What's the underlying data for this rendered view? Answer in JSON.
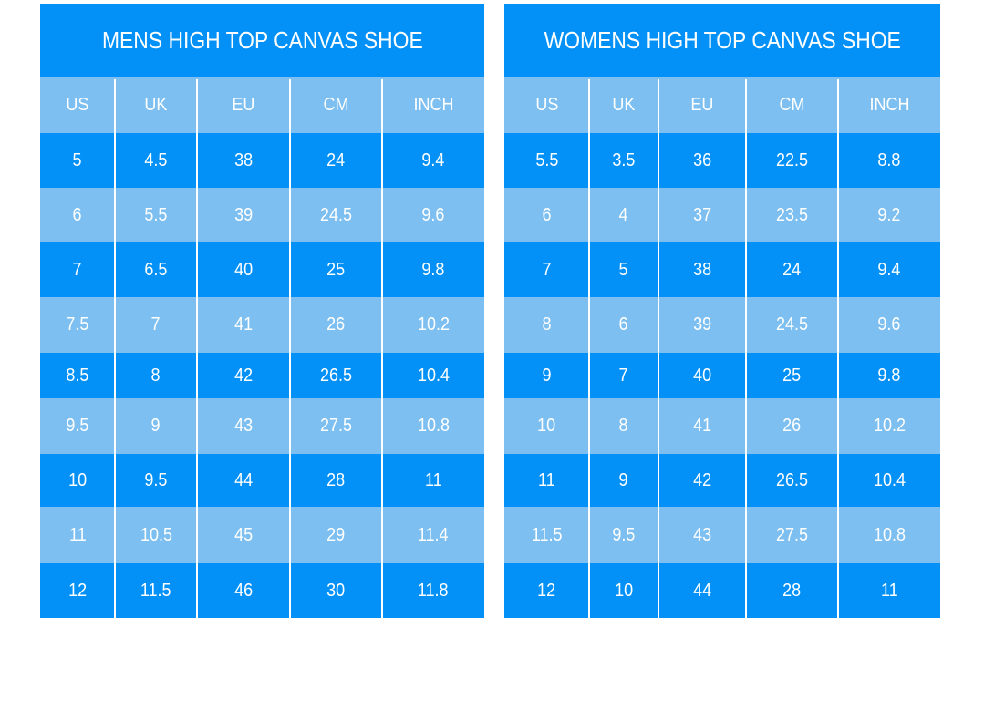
{
  "tables": [
    {
      "title": "MENS HIGH TOP CANVAS SHOE",
      "header": [
        "US",
        "UK",
        "EU",
        "CM",
        "INCH"
      ],
      "rows": [
        [
          "5",
          "4.5",
          "38",
          "24",
          "9.4"
        ],
        [
          "6",
          "5.5",
          "39",
          "24.5",
          "9.6"
        ],
        [
          "7",
          "6.5",
          "40",
          "25",
          "9.8"
        ],
        [
          "7.5",
          "7",
          "41",
          "26",
          "10.2"
        ],
        [
          "8.5",
          "8",
          "42",
          "26.5",
          "10.4"
        ],
        [
          "9.5",
          "9",
          "43",
          "27.5",
          "10.8"
        ],
        [
          "10",
          "9.5",
          "44",
          "28",
          "11"
        ],
        [
          "11",
          "10.5",
          "45",
          "29",
          "11.4"
        ],
        [
          "12",
          "11.5",
          "46",
          "30",
          "11.8"
        ]
      ]
    },
    {
      "title": "WOMENS HIGH TOP CANVAS SHOE",
      "header": [
        "US",
        "UK",
        "EU",
        "CM",
        "INCH"
      ],
      "rows": [
        [
          "5.5",
          "3.5",
          "36",
          "22.5",
          "8.8"
        ],
        [
          "6",
          "4",
          "37",
          "23.5",
          "9.2"
        ],
        [
          "7",
          "5",
          "38",
          "24",
          "9.4"
        ],
        [
          "8",
          "6",
          "39",
          "24.5",
          "9.6"
        ],
        [
          "9",
          "7",
          "40",
          "25",
          "9.8"
        ],
        [
          "10",
          "8",
          "41",
          "26",
          "10.2"
        ],
        [
          "11",
          "9",
          "42",
          "26.5",
          "10.4"
        ],
        [
          "11.5",
          "9.5",
          "43",
          "27.5",
          "10.8"
        ],
        [
          "12",
          "10",
          "44",
          "28",
          "11"
        ]
      ]
    }
  ]
}
